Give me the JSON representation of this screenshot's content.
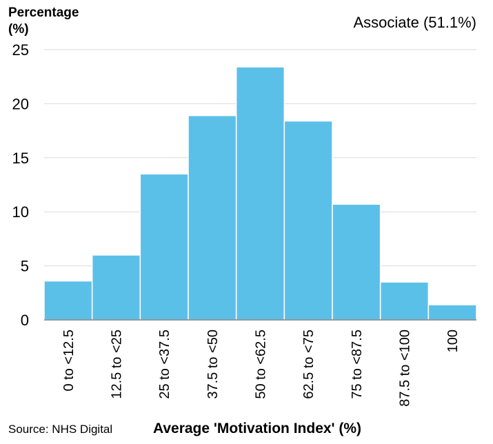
{
  "chart_data": {
    "type": "bar",
    "ylabel_line1": "Percentage",
    "ylabel_line2": "(%)",
    "xlabel": "Average 'Motivation Index' (%)",
    "source": "Source: NHS Digital",
    "annotation": "Associate (51.1%)",
    "categories": [
      "0 to <12.5",
      "12.5 to <25",
      "25 to <37.5",
      "37.5 to <50",
      "50 to <62.5",
      "62.5 to <75",
      "75 to <87.5",
      "87.5 to <100",
      "100"
    ],
    "values": [
      3.6,
      6.0,
      13.5,
      18.9,
      23.4,
      18.4,
      10.7,
      3.5,
      1.4
    ],
    "yticks": [
      "0",
      "5",
      "10",
      "15",
      "20",
      "25"
    ],
    "ylim": [
      0,
      25
    ],
    "grid": true,
    "bar_color": "#5bc0e8",
    "grid_color": "#d9d9d9"
  }
}
